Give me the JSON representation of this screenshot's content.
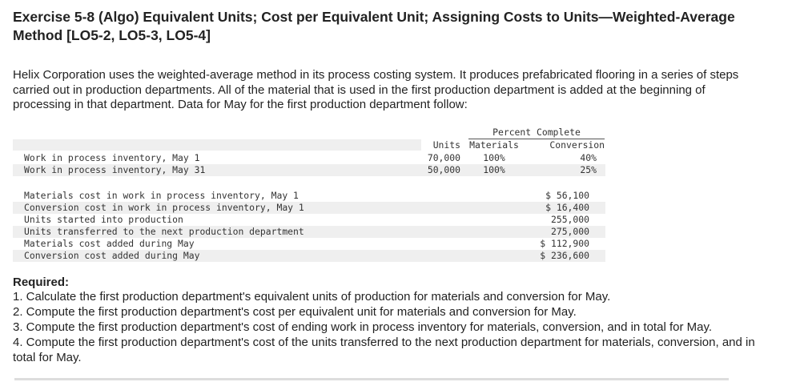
{
  "header": {
    "title": "Exercise 5-8 (Algo) Equivalent Units; Cost per Equivalent Unit; Assigning Costs to Units—Weighted-Average Method [LO5-2, LO5-3, LO5-4]"
  },
  "intro": "Helix Corporation uses the weighted-average method in its process costing system. It produces prefabricated flooring in a series of steps carried out in production departments. All of the material that is used in the first production department is added at the beginning of processing in that department. Data for May for the first production department follow:",
  "table": {
    "group_header": "Percent Complete",
    "columns": [
      "Units",
      "Materials",
      "Conversion"
    ],
    "rows": [
      [
        "Work in process inventory, May 1",
        "70,000",
        "100%",
        "40%"
      ],
      [
        "Work in process inventory, May 31",
        "50,000",
        "100%",
        "25%"
      ]
    ]
  },
  "costs": {
    "rows": [
      [
        "Materials cost in work in process inventory, May 1",
        "$ 56,100"
      ],
      [
        "Conversion cost in work in process inventory, May 1",
        "$ 16,400"
      ],
      [
        "Units started into production",
        "255,000"
      ],
      [
        "Units transferred to the next production department",
        "275,000"
      ],
      [
        "Materials cost added during May",
        "$ 112,900"
      ],
      [
        "Conversion cost added during May",
        "$ 236,600"
      ]
    ]
  },
  "required": {
    "heading": "Required:",
    "items": [
      "1. Calculate the first production department's equivalent units of production for materials and conversion for May.",
      "2. Compute the first production department's cost per equivalent unit for materials and conversion for May.",
      "3. Compute the first production department's cost of ending work in process inventory for materials, conversion, and in total for May.",
      "4. Compute the first production department's cost of the units transferred to the next production department for materials, conversion, and in total for May."
    ]
  }
}
